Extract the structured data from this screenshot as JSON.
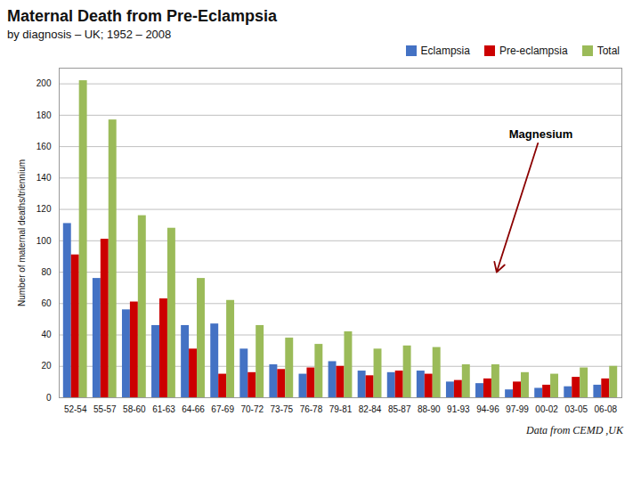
{
  "chart_data": {
    "type": "bar",
    "title": "Maternal Death from Pre-Eclampsia",
    "subtitle": "by diagnosis – UK; 1952 – 2008",
    "categories": [
      "52-54",
      "55-57",
      "58-60",
      "61-63",
      "64-66",
      "67-69",
      "70-72",
      "73-75",
      "76-78",
      "79-81",
      "82-84",
      "85-87",
      "88-90",
      "91-93",
      "94-96",
      "97-99",
      "00-02",
      "03-05",
      "06-08"
    ],
    "series": [
      {
        "name": "Eclampsia",
        "color": "#4472C4",
        "values": [
          111,
          76,
          56,
          46,
          46,
          47,
          31,
          21,
          15,
          23,
          17,
          16,
          17,
          10,
          9,
          5,
          6,
          7,
          8
        ]
      },
      {
        "name": "Pre-eclampsia",
        "color": "#CC0000",
        "values": [
          91,
          101,
          61,
          63,
          31,
          15,
          16,
          18,
          19,
          20,
          14,
          17,
          15,
          11,
          12,
          10,
          8,
          13,
          12
        ]
      },
      {
        "name": "Total",
        "color": "#9BBB59",
        "values": [
          202,
          177,
          116,
          108,
          76,
          62,
          46,
          38,
          34,
          42,
          31,
          33,
          32,
          21,
          21,
          16,
          15,
          19,
          20
        ]
      }
    ],
    "ylabel": "Number of maternal deaths/triennium",
    "ylim": [
      0,
      210
    ],
    "yticks": [
      0,
      20,
      40,
      60,
      80,
      100,
      120,
      140,
      160,
      180,
      200
    ],
    "grid": true,
    "legend": "upper right",
    "annotations": [
      {
        "text": "Magnesium",
        "x": "94-96",
        "y": 80,
        "text_y": 168
      }
    ],
    "source": "Data from CEMD ,UK"
  }
}
